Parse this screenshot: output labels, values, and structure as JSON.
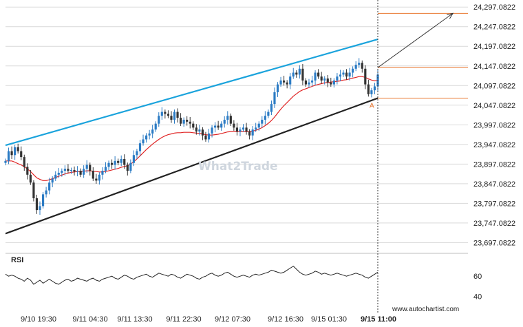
{
  "chart_data": [
    {
      "type": "candlestick",
      "y_tick_labels": [
        "24,297.0822",
        "24,247.0822",
        "24,197.0822",
        "24,147.0822",
        "24,097.0822",
        "24,047.0822",
        "23,997.0822",
        "23,947.0822",
        "23,897.0822",
        "23,847.0822",
        "23,797.0822",
        "23,747.0822",
        "23,697.0822"
      ],
      "y_ticks": [
        24297.0822,
        24247.0822,
        24197.0822,
        24147.0822,
        24097.0822,
        24047.0822,
        23997.0822,
        23947.0822,
        23897.0822,
        23847.0822,
        23797.0822,
        23747.0822,
        23697.0822
      ],
      "ylim": [
        23675,
        24315
      ],
      "x_tick_labels": [
        "9/10 19:30",
        "9/11 04:30",
        "9/11 13:30",
        "9/11 22:30",
        "9/12 07:30",
        "9/12 16:30",
        "9/15 01:30",
        "9/15 11:00"
      ],
      "bar_count": 120,
      "closes": [
        23905,
        23930,
        23920,
        23940,
        23930,
        23915,
        23890,
        23870,
        23850,
        23810,
        23780,
        23790,
        23820,
        23830,
        23850,
        23860,
        23870,
        23875,
        23880,
        23885,
        23880,
        23882,
        23878,
        23880,
        23870,
        23885,
        23895,
        23880,
        23860,
        23855,
        23870,
        23880,
        23890,
        23900,
        23895,
        23905,
        23900,
        23910,
        23895,
        23880,
        23900,
        23920,
        23930,
        23950,
        23960,
        23970,
        23975,
        23985,
        24000,
        24020,
        24030,
        24025,
        24020,
        24010,
        24030,
        24015,
        24000,
        24010,
        24005,
        24000,
        23990,
        23980,
        23985,
        23970,
        23960,
        23975,
        23990,
        23995,
        23990,
        24000,
        24010,
        24020,
        24000,
        23990,
        23980,
        23985,
        23990,
        23980,
        23970,
        23985,
        23990,
        24000,
        24010,
        24020,
        24030,
        24050,
        24080,
        24100,
        24110,
        24105,
        24100,
        24120,
        24130,
        24125,
        24140,
        24110,
        24100,
        24105,
        24110,
        24130,
        24120,
        24110,
        24115,
        24105,
        24100,
        24110,
        24120,
        24125,
        24130,
        24120,
        24130,
        24140,
        24150,
        24155,
        24140,
        24100,
        24075,
        24085,
        24095,
        24125
      ],
      "ma": [
        23905,
        23905,
        23905,
        23902,
        23898,
        23895,
        23890,
        23885,
        23878,
        23870,
        23862,
        23858,
        23855,
        23855,
        23857,
        23860,
        23863,
        23866,
        23869,
        23872,
        23874,
        23876,
        23877,
        23878,
        23878,
        23879,
        23880,
        23880,
        23879,
        23878,
        23877,
        23877,
        23878,
        23880,
        23882,
        23884,
        23886,
        23889,
        23891,
        23893,
        23897,
        23903,
        23910,
        23918,
        23926,
        23934,
        23941,
        23948,
        23954,
        23960,
        23965,
        23969,
        23972,
        23974,
        23976,
        23977,
        23977,
        23978,
        23978,
        23978,
        23977,
        23976,
        23975,
        23974,
        23972,
        23971,
        23971,
        23972,
        23973,
        23975,
        23977,
        23979,
        23980,
        23980,
        23980,
        23980,
        23980,
        23980,
        23980,
        23981,
        23983,
        23986,
        23990,
        23995,
        24001,
        24008,
        24017,
        24027,
        24037,
        24046,
        24054,
        24062,
        24070,
        24076,
        24082,
        24086,
        24089,
        24092,
        24095,
        24098,
        24100,
        24102,
        24104,
        24105,
        24106,
        24107,
        24108,
        24109,
        24111,
        24112,
        24114,
        24116,
        24118,
        24120,
        24120,
        24118,
        24114,
        24111,
        24109,
        24110
      ],
      "rsi_label": "RSI",
      "rsi_tick_labels": [
        "60",
        "40"
      ],
      "rsi_ticks": [
        60,
        40
      ],
      "rsi_ylim": [
        30,
        80
      ],
      "rsi": [
        62,
        60,
        61,
        60,
        58,
        57,
        55,
        58,
        56,
        52,
        54,
        56,
        53,
        55,
        57,
        55,
        53,
        52,
        54,
        56,
        57,
        55,
        56,
        58,
        57,
        56,
        55,
        57,
        58,
        56,
        55,
        57,
        58,
        59,
        60,
        58,
        57,
        59,
        61,
        60,
        58,
        57,
        59,
        60,
        61,
        62,
        60,
        59,
        61,
        63,
        62,
        61,
        60,
        62,
        61,
        59,
        58,
        60,
        62,
        61,
        60,
        58,
        57,
        59,
        60,
        62,
        63,
        61,
        60,
        61,
        63,
        64,
        62,
        60,
        59,
        60,
        61,
        60,
        59,
        61,
        62,
        61,
        62,
        63,
        64,
        66,
        65,
        64,
        63,
        64,
        66,
        68,
        70,
        67,
        64,
        62,
        61,
        62,
        63,
        65,
        64,
        62,
        63,
        62,
        61,
        62,
        63,
        62,
        61,
        60,
        61,
        62,
        63,
        62,
        61,
        59,
        58,
        60,
        62,
        64
      ],
      "channel_upper": [
        [
          0,
          23945
        ],
        [
          119,
          24215
        ]
      ],
      "channel_lower": [
        [
          0,
          23720
        ],
        [
          119,
          24065
        ]
      ],
      "forecast_arrow": [
        [
          119,
          24143
        ],
        [
          143,
          24281
        ]
      ],
      "horizontal_levels": [
        24281,
        24143,
        24065
      ],
      "marker_label": "A",
      "watermark": "What2Trade",
      "credit": "www.autochartist.com"
    }
  ],
  "colors": {
    "upper_channel": "#1aa3dc",
    "lower_channel": "#222222",
    "moving_average": "#e02424",
    "level_lines": "#e8742c",
    "candle_up": "#2b7bc4",
    "candle_down": "#333333",
    "rsi_line": "#222222",
    "grid": "#d9d9d9",
    "marker": "#e8742c"
  }
}
